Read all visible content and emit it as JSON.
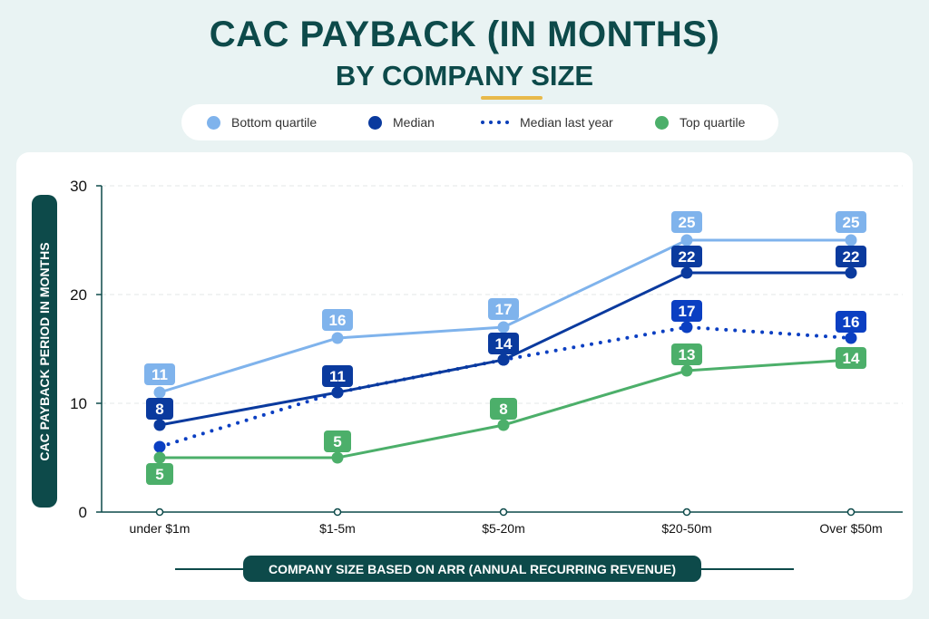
{
  "chart_data": {
    "type": "line",
    "title": "CAC PAYBACK (IN MONTHS)",
    "subtitle": "BY COMPANY SIZE",
    "xlabel": "COMPANY SIZE BASED ON ARR (ANNUAL RECURRING REVENUE)",
    "ylabel": "CAC PAYBACK PERIOD IN MONTHS",
    "categories": [
      "under $1m",
      "$1-5m",
      "$5-20m",
      "$20-50m",
      "Over $50m"
    ],
    "ylim": [
      0,
      30
    ],
    "yticks": [
      0,
      10,
      20,
      30
    ],
    "grid": true,
    "legend_position": "top",
    "series": [
      {
        "name": "Bottom quartile",
        "values": [
          11,
          16,
          17,
          25,
          25
        ],
        "color": "#7fb3ec",
        "style": "solid",
        "labels": [
          "11",
          "16",
          "17",
          "25",
          "25"
        ]
      },
      {
        "name": "Median",
        "values": [
          8,
          11,
          14,
          22,
          22
        ],
        "color": "#0a3a9e",
        "style": "solid",
        "labels": [
          "8",
          "11",
          "14",
          "22",
          "22"
        ]
      },
      {
        "name": "Median last year",
        "values": [
          6,
          11,
          14,
          17,
          16
        ],
        "color": "#0b3fc2",
        "style": "dotted",
        "labels": [
          "",
          "",
          "",
          "17",
          "16"
        ]
      },
      {
        "name": "Top quartile",
        "values": [
          5,
          5,
          8,
          13,
          14
        ],
        "color": "#4caf6a",
        "style": "solid",
        "labels": [
          "5",
          "5",
          "8",
          "13",
          "14"
        ]
      }
    ]
  }
}
